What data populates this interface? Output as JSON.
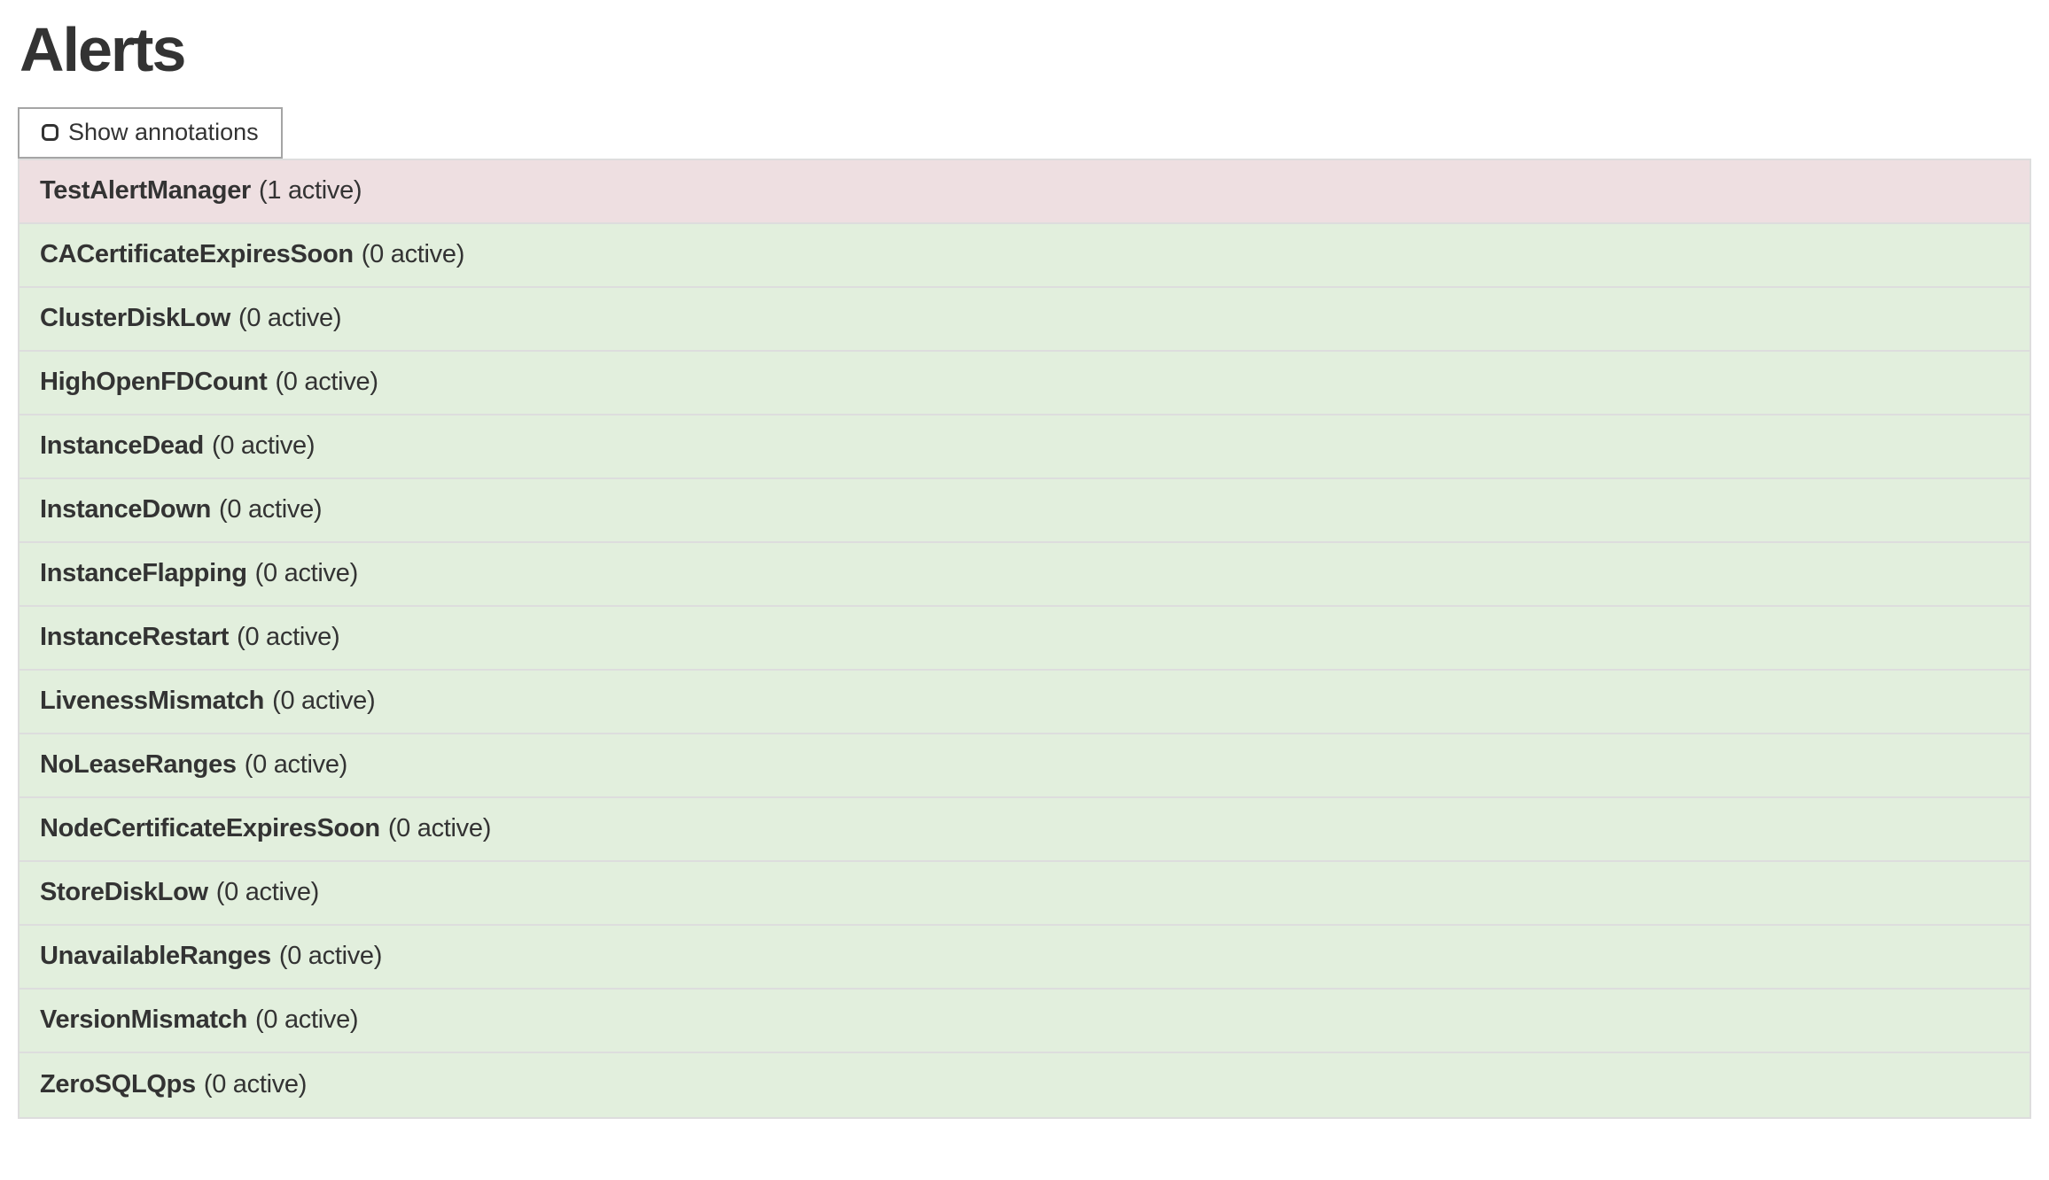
{
  "page": {
    "title": "Alerts"
  },
  "toolbar": {
    "show_annotations_label": "Show annotations",
    "checkbox_checked": false
  },
  "alerts": [
    {
      "name": "TestAlertManager",
      "count_label": "(1 active)",
      "active_count": 1,
      "state": "firing"
    },
    {
      "name": "CACertificateExpiresSoon",
      "count_label": "(0 active)",
      "active_count": 0,
      "state": "inactive"
    },
    {
      "name": "ClusterDiskLow",
      "count_label": "(0 active)",
      "active_count": 0,
      "state": "inactive"
    },
    {
      "name": "HighOpenFDCount",
      "count_label": "(0 active)",
      "active_count": 0,
      "state": "inactive"
    },
    {
      "name": "InstanceDead",
      "count_label": "(0 active)",
      "active_count": 0,
      "state": "inactive"
    },
    {
      "name": "InstanceDown",
      "count_label": "(0 active)",
      "active_count": 0,
      "state": "inactive"
    },
    {
      "name": "InstanceFlapping",
      "count_label": "(0 active)",
      "active_count": 0,
      "state": "inactive"
    },
    {
      "name": "InstanceRestart",
      "count_label": "(0 active)",
      "active_count": 0,
      "state": "inactive"
    },
    {
      "name": "LivenessMismatch",
      "count_label": "(0 active)",
      "active_count": 0,
      "state": "inactive"
    },
    {
      "name": "NoLeaseRanges",
      "count_label": "(0 active)",
      "active_count": 0,
      "state": "inactive"
    },
    {
      "name": "NodeCertificateExpiresSoon",
      "count_label": "(0 active)",
      "active_count": 0,
      "state": "inactive"
    },
    {
      "name": "StoreDiskLow",
      "count_label": "(0 active)",
      "active_count": 0,
      "state": "inactive"
    },
    {
      "name": "UnavailableRanges",
      "count_label": "(0 active)",
      "active_count": 0,
      "state": "inactive"
    },
    {
      "name": "VersionMismatch",
      "count_label": "(0 active)",
      "active_count": 0,
      "state": "inactive"
    },
    {
      "name": "ZeroSQLQps",
      "count_label": "(0 active)",
      "active_count": 0,
      "state": "inactive"
    }
  ],
  "colors": {
    "firing_row_bg": "#eedfe1",
    "inactive_row_bg": "#e2efdd",
    "row_border": "#dddddd",
    "text": "#333333",
    "button_border": "#a5a5a5"
  }
}
